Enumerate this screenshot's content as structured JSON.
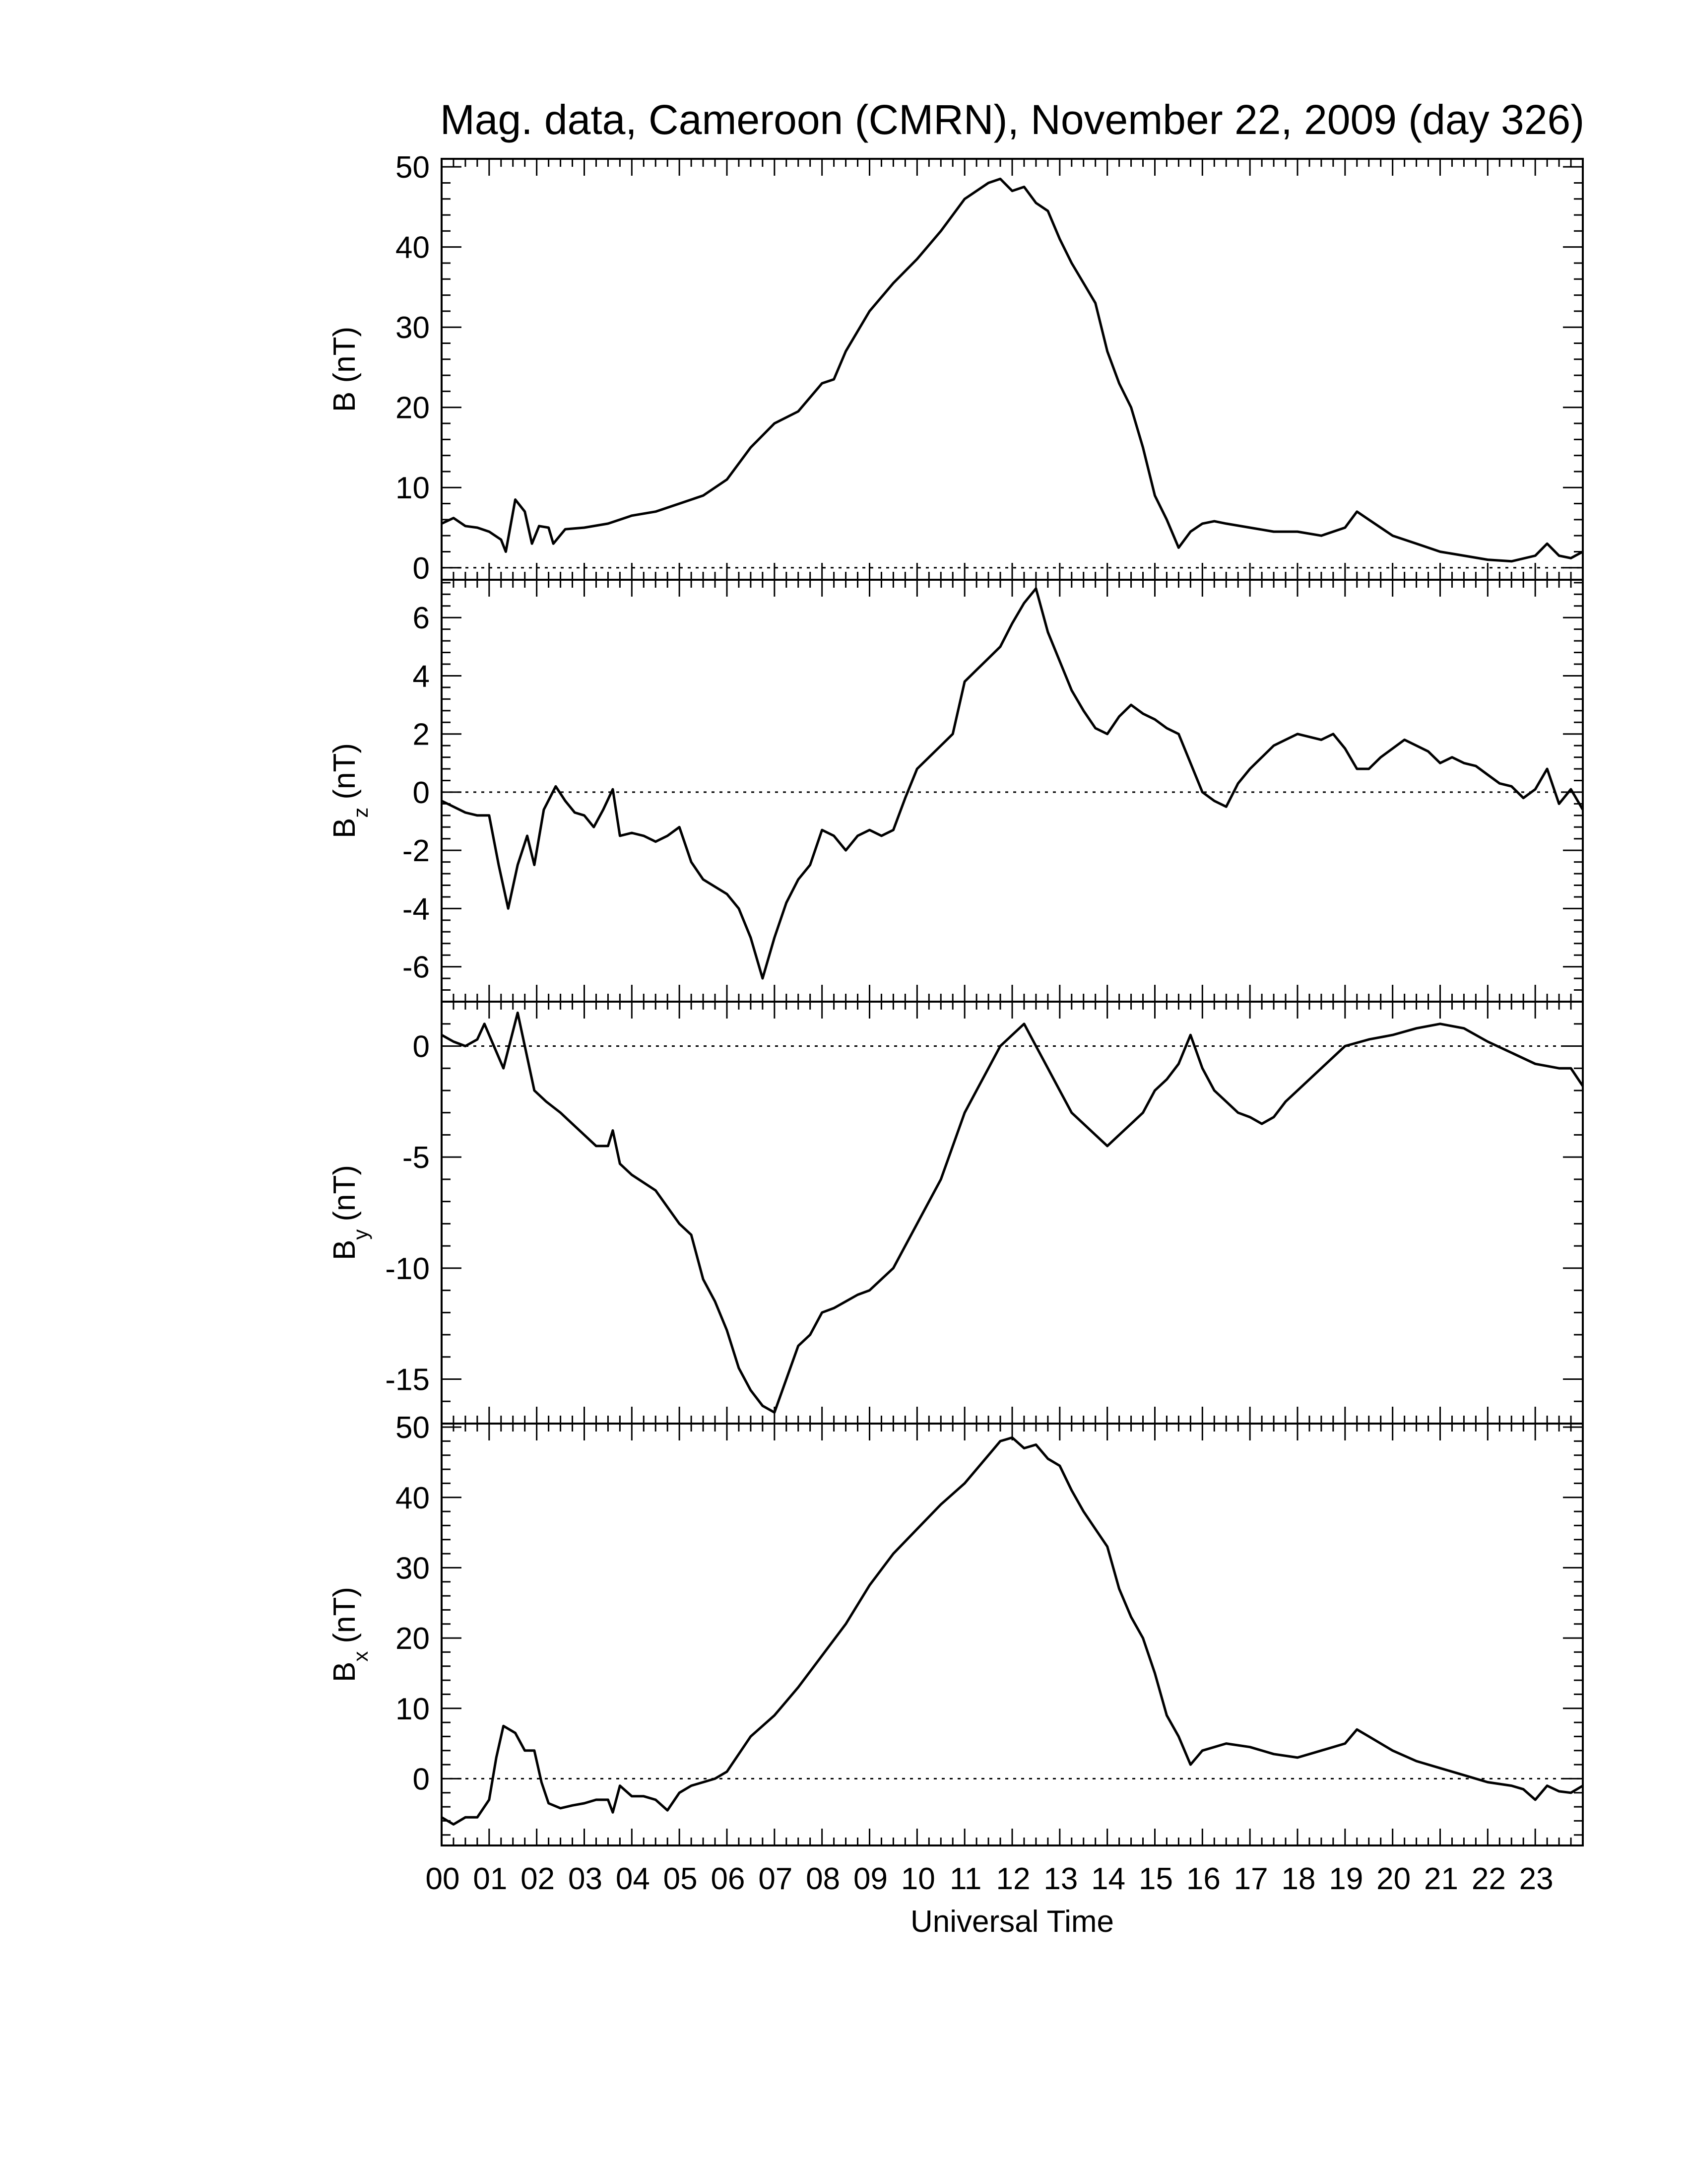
{
  "title": "Mag. data, Cameroon (CMRN), November 22, 2009 (day 326)",
  "xlabel": "Universal Time",
  "x_tick_labels": [
    "00",
    "01",
    "02",
    "03",
    "04",
    "05",
    "06",
    "07",
    "08",
    "09",
    "10",
    "11",
    "12",
    "13",
    "14",
    "15",
    "16",
    "17",
    "18",
    "19",
    "20",
    "21",
    "22",
    "23"
  ],
  "chart_data": [
    {
      "type": "line",
      "panel": "B",
      "ylabel": "B (nT)",
      "ylabel_main": "B (nT)",
      "ylabel_sub": "",
      "ylabel_tail": "",
      "xlim": [
        0,
        24
      ],
      "ylim": [
        -1.5,
        51
      ],
      "yticks": [
        0,
        10,
        20,
        30,
        40,
        50
      ],
      "zero_line": true,
      "x": [
        0,
        0.25,
        0.5,
        0.75,
        1.0,
        1.25,
        1.35,
        1.55,
        1.75,
        1.9,
        2.05,
        2.25,
        2.35,
        2.6,
        3.0,
        3.5,
        3.75,
        4.0,
        4.5,
        5.0,
        5.5,
        6.0,
        6.5,
        7.0,
        7.5,
        8.0,
        8.25,
        8.5,
        9.0,
        9.5,
        10.0,
        10.5,
        11.0,
        11.5,
        11.75,
        12.0,
        12.25,
        12.5,
        12.75,
        13.0,
        13.25,
        13.5,
        13.75,
        14.0,
        14.25,
        14.5,
        14.75,
        15.0,
        15.25,
        15.5,
        15.75,
        16.0,
        16.25,
        16.5,
        17.0,
        17.5,
        18.0,
        18.5,
        19.0,
        19.25,
        19.5,
        20.0,
        20.5,
        21.0,
        21.5,
        22.0,
        22.5,
        23.0,
        23.25,
        23.5,
        23.75,
        24.0
      ],
      "values": [
        5.5,
        6.2,
        5.2,
        5.0,
        4.5,
        3.5,
        2.0,
        8.5,
        7.0,
        3.0,
        5.2,
        5.0,
        3.0,
        4.8,
        5.0,
        5.5,
        6.0,
        6.5,
        7.0,
        8.0,
        9.0,
        11.0,
        15.0,
        18.0,
        19.5,
        23.0,
        23.5,
        27.0,
        32.0,
        35.5,
        38.5,
        42.0,
        46.0,
        48.0,
        48.5,
        47.0,
        47.5,
        45.5,
        44.5,
        41.0,
        38.0,
        35.5,
        33.0,
        27.0,
        23.0,
        20.0,
        15.0,
        9.0,
        6.0,
        2.5,
        4.5,
        5.5,
        5.8,
        5.5,
        5.0,
        4.5,
        4.5,
        4.0,
        5.0,
        7.0,
        6.0,
        4.0,
        3.0,
        2.0,
        1.5,
        1.0,
        0.8,
        1.5,
        3.0,
        1.5,
        1.2,
        2.0
      ]
    },
    {
      "type": "line",
      "panel": "Bz",
      "ylabel": "Bz (nT)",
      "ylabel_main": "B",
      "ylabel_sub": "z",
      "ylabel_tail": "(nT)",
      "xlim": [
        0,
        24
      ],
      "ylim": [
        -7.2,
        7.3
      ],
      "yticks": [
        -6,
        -4,
        -2,
        0,
        2,
        4,
        6
      ],
      "zero_line": true,
      "x": [
        0,
        0.25,
        0.5,
        0.75,
        1.0,
        1.2,
        1.4,
        1.6,
        1.8,
        1.95,
        2.15,
        2.4,
        2.6,
        2.8,
        3.0,
        3.2,
        3.4,
        3.6,
        3.75,
        4.0,
        4.25,
        4.5,
        4.75,
        5.0,
        5.25,
        5.5,
        6.0,
        6.25,
        6.5,
        6.75,
        7.0,
        7.25,
        7.5,
        7.75,
        8.0,
        8.25,
        8.5,
        8.75,
        9.0,
        9.25,
        9.5,
        9.75,
        10.0,
        10.25,
        10.5,
        10.75,
        11.0,
        11.25,
        11.5,
        11.75,
        12.0,
        12.25,
        12.5,
        12.75,
        13.0,
        13.25,
        13.5,
        13.75,
        14.0,
        14.25,
        14.5,
        14.75,
        15.0,
        15.25,
        15.5,
        15.75,
        16.0,
        16.25,
        16.5,
        16.75,
        17.0,
        17.25,
        17.5,
        17.75,
        18.0,
        18.25,
        18.5,
        18.75,
        19.0,
        19.25,
        19.5,
        19.75,
        20.0,
        20.25,
        20.5,
        20.75,
        21.0,
        21.25,
        21.5,
        21.75,
        22.0,
        22.25,
        22.5,
        22.75,
        23.0,
        23.25,
        23.5,
        23.75,
        24.0
      ],
      "values": [
        -0.3,
        -0.5,
        -0.7,
        -0.8,
        -0.8,
        -2.5,
        -4.0,
        -2.5,
        -1.5,
        -2.5,
        -0.6,
        0.2,
        -0.3,
        -0.7,
        -0.8,
        -1.2,
        -0.6,
        0.1,
        -1.5,
        -1.4,
        -1.5,
        -1.7,
        -1.5,
        -1.2,
        -2.4,
        -3.0,
        -3.5,
        -4.0,
        -5.0,
        -6.4,
        -5.0,
        -3.8,
        -3.0,
        -2.5,
        -1.3,
        -1.5,
        -2.0,
        -1.5,
        -1.3,
        -1.5,
        -1.3,
        -0.2,
        0.8,
        1.2,
        1.6,
        2.0,
        3.8,
        4.2,
        4.6,
        5.0,
        5.8,
        6.5,
        7.0,
        5.5,
        4.5,
        3.5,
        2.8,
        2.2,
        2.0,
        2.6,
        3.0,
        2.7,
        2.5,
        2.2,
        2.0,
        1.0,
        0.0,
        -0.3,
        -0.5,
        0.3,
        0.8,
        1.2,
        1.6,
        1.8,
        2.0,
        1.9,
        1.8,
        2.0,
        1.5,
        0.8,
        0.8,
        1.2,
        1.5,
        1.8,
        1.6,
        1.4,
        1.0,
        1.2,
        1.0,
        0.9,
        0.6,
        0.3,
        0.2,
        -0.2,
        0.1,
        0.8,
        -0.4,
        0.1,
        -0.6
      ]
    },
    {
      "type": "line",
      "panel": "By",
      "ylabel": "By (nT)",
      "ylabel_main": "B",
      "ylabel_sub": "y",
      "ylabel_tail": "(nT)",
      "xlim": [
        0,
        24
      ],
      "ylim": [
        -17,
        2
      ],
      "yticks": [
        -15,
        -10,
        -5,
        0
      ],
      "zero_line": true,
      "x": [
        0,
        0.25,
        0.5,
        0.75,
        0.9,
        1.1,
        1.3,
        1.6,
        1.8,
        1.95,
        2.2,
        2.5,
        2.75,
        3.0,
        3.25,
        3.5,
        3.6,
        3.75,
        4.0,
        4.5,
        5.0,
        5.25,
        5.5,
        5.75,
        6.0,
        6.25,
        6.5,
        6.75,
        7.0,
        7.25,
        7.5,
        7.75,
        8.0,
        8.25,
        8.5,
        8.75,
        9.0,
        9.5,
        10.0,
        10.5,
        11.0,
        11.25,
        11.5,
        11.75,
        12.0,
        12.25,
        12.5,
        12.75,
        13.0,
        13.25,
        13.5,
        13.75,
        14.0,
        14.25,
        14.5,
        14.75,
        15.0,
        15.25,
        15.5,
        15.75,
        16.0,
        16.25,
        16.5,
        16.75,
        17.0,
        17.25,
        17.5,
        17.75,
        18.0,
        18.5,
        19.0,
        19.5,
        20.0,
        20.5,
        21.0,
        21.5,
        22.0,
        22.5,
        23.0,
        23.25,
        23.5,
        23.75,
        24.0
      ],
      "values": [
        0.5,
        0.2,
        0.0,
        0.3,
        1.0,
        0.0,
        -1.0,
        1.5,
        -0.5,
        -2.0,
        -2.5,
        -3.0,
        -3.5,
        -4.0,
        -4.5,
        -4.5,
        -3.8,
        -5.3,
        -5.8,
        -6.5,
        -8.0,
        -8.5,
        -10.5,
        -11.5,
        -12.8,
        -14.5,
        -15.5,
        -16.2,
        -16.5,
        -15.0,
        -13.5,
        -13.0,
        -12.0,
        -11.8,
        -11.5,
        -11.2,
        -11.0,
        -10.0,
        -8.0,
        -6.0,
        -3.0,
        -2.0,
        -1.0,
        0.0,
        0.5,
        1.0,
        0.0,
        -1.0,
        -2.0,
        -3.0,
        -3.5,
        -4.0,
        -4.5,
        -4.0,
        -3.5,
        -3.0,
        -2.0,
        -1.5,
        -0.8,
        0.5,
        -1.0,
        -2.0,
        -2.5,
        -3.0,
        -3.2,
        -3.5,
        -3.2,
        -2.5,
        -2.0,
        -1.0,
        0.0,
        0.3,
        0.5,
        0.8,
        1.0,
        0.8,
        0.2,
        -0.3,
        -0.8,
        -0.9,
        -1.0,
        -1.0,
        -1.8
      ]
    },
    {
      "type": "line",
      "panel": "Bx",
      "ylabel": "Bx (nT)",
      "ylabel_main": "B",
      "ylabel_sub": "x",
      "ylabel_tail": "(nT)",
      "xlim": [
        0,
        24
      ],
      "ylim": [
        -9.5,
        50.5
      ],
      "yticks": [
        0,
        10,
        20,
        30,
        40,
        50
      ],
      "zero_line": true,
      "x": [
        0,
        0.25,
        0.5,
        0.75,
        1.0,
        1.15,
        1.3,
        1.55,
        1.75,
        1.95,
        2.1,
        2.25,
        2.5,
        2.75,
        3.0,
        3.25,
        3.5,
        3.6,
        3.75,
        4.0,
        4.25,
        4.5,
        4.75,
        5.0,
        5.25,
        5.5,
        5.75,
        6.0,
        6.5,
        7.0,
        7.5,
        8.0,
        8.5,
        9.0,
        9.5,
        10.0,
        10.5,
        11.0,
        11.5,
        11.75,
        12.0,
        12.25,
        12.5,
        12.75,
        13.0,
        13.25,
        13.5,
        13.75,
        14.0,
        14.25,
        14.5,
        14.75,
        15.0,
        15.25,
        15.5,
        15.75,
        16.0,
        16.5,
        17.0,
        17.5,
        18.0,
        18.5,
        19.0,
        19.25,
        19.5,
        20.0,
        20.5,
        21.0,
        21.5,
        22.0,
        22.5,
        22.75,
        23.0,
        23.25,
        23.5,
        23.75,
        24.0
      ],
      "values": [
        -5.5,
        -6.5,
        -5.5,
        -5.5,
        -3.0,
        3.0,
        7.5,
        6.5,
        4.0,
        4.0,
        -0.5,
        -3.5,
        -4.2,
        -3.8,
        -3.5,
        -3.0,
        -3.0,
        -4.8,
        -1.0,
        -2.5,
        -2.5,
        -3.0,
        -4.5,
        -2.0,
        -1.0,
        -0.5,
        0.0,
        1.0,
        6.0,
        9.0,
        13.0,
        17.5,
        22.0,
        27.5,
        32.0,
        35.5,
        39.0,
        42.0,
        46.0,
        48.0,
        48.5,
        47.0,
        47.5,
        45.5,
        44.5,
        41.0,
        38.0,
        35.5,
        33.0,
        27.0,
        23.0,
        20.0,
        15.0,
        9.0,
        6.0,
        2.0,
        4.0,
        5.0,
        4.5,
        3.5,
        3.0,
        4.0,
        5.0,
        7.0,
        6.0,
        4.0,
        2.5,
        1.5,
        0.5,
        -0.5,
        -1.0,
        -1.5,
        -3.0,
        -1.0,
        -1.8,
        -2.0,
        -1.0
      ]
    }
  ]
}
